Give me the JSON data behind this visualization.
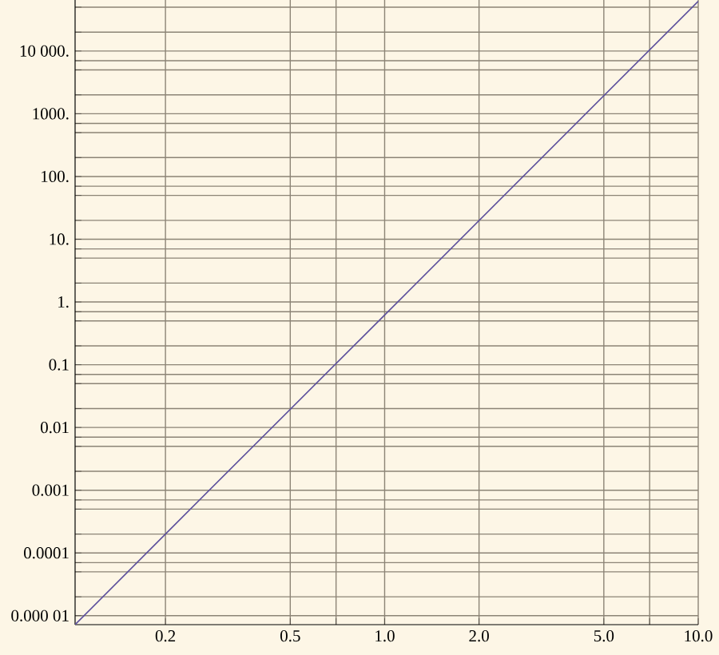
{
  "chart_data": {
    "type": "line",
    "log": "xy",
    "grid": true,
    "xlim": [
      0.103,
      10
    ],
    "ylim": [
      7.2e-06,
      65000.0
    ],
    "xticks": [
      {
        "value": 0.2,
        "label": "0.2"
      },
      {
        "value": 0.5,
        "label": "0.5"
      },
      {
        "value": 0.7,
        "label": null
      },
      {
        "value": 1,
        "label": "1.0"
      },
      {
        "value": 2,
        "label": "2.0"
      },
      {
        "value": 5,
        "label": "5.0"
      },
      {
        "value": 7,
        "label": null
      },
      {
        "value": 10,
        "label": "10.0"
      }
    ],
    "yticks": [
      {
        "value": 1e-05,
        "label": "0.000 01"
      },
      {
        "value": 2e-05,
        "label": null
      },
      {
        "value": 5e-05,
        "label": null
      },
      {
        "value": 7e-05,
        "label": null
      },
      {
        "value": 0.0001,
        "label": "0.0001"
      },
      {
        "value": 0.0002,
        "label": null
      },
      {
        "value": 0.0005,
        "label": null
      },
      {
        "value": 0.0007,
        "label": null
      },
      {
        "value": 0.001,
        "label": "0.001"
      },
      {
        "value": 0.002,
        "label": null
      },
      {
        "value": 0.005,
        "label": null
      },
      {
        "value": 0.007,
        "label": null
      },
      {
        "value": 0.01,
        "label": "0.01"
      },
      {
        "value": 0.02,
        "label": null
      },
      {
        "value": 0.05,
        "label": null
      },
      {
        "value": 0.07,
        "label": null
      },
      {
        "value": 0.1,
        "label": "0.1"
      },
      {
        "value": 0.2,
        "label": null
      },
      {
        "value": 0.5,
        "label": null
      },
      {
        "value": 0.7,
        "label": null
      },
      {
        "value": 1,
        "label": "1."
      },
      {
        "value": 2,
        "label": null
      },
      {
        "value": 5,
        "label": null
      },
      {
        "value": 7,
        "label": null
      },
      {
        "value": 10,
        "label": "10."
      },
      {
        "value": 20,
        "label": null
      },
      {
        "value": 50,
        "label": null
      },
      {
        "value": 70,
        "label": null
      },
      {
        "value": 100,
        "label": "100."
      },
      {
        "value": 200,
        "label": null
      },
      {
        "value": 500,
        "label": null
      },
      {
        "value": 700,
        "label": null
      },
      {
        "value": 1000,
        "label": "1000."
      },
      {
        "value": 2000,
        "label": null
      },
      {
        "value": 5000,
        "label": null
      },
      {
        "value": 7000,
        "label": null
      },
      {
        "value": 10000,
        "label": "10 000."
      },
      {
        "value": 20000,
        "label": null
      },
      {
        "value": 50000,
        "label": null
      }
    ],
    "x": [
      0.103,
      0.2,
      1,
      10
    ],
    "series": [
      {
        "color": "#5b4f9c",
        "values": [
          7.2e-06,
          0.0002,
          0.62,
          62000.0
        ]
      }
    ]
  }
}
